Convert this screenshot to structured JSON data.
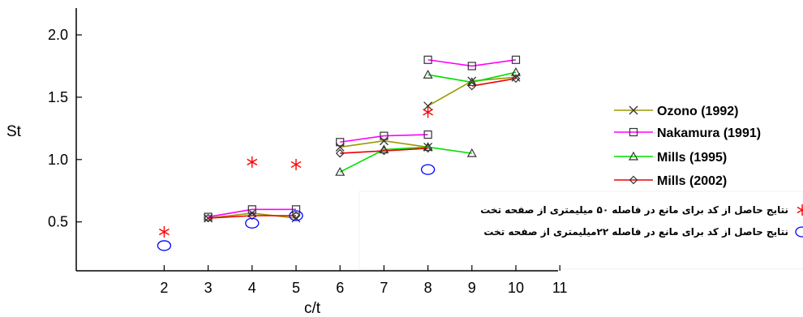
{
  "chart_data": {
    "type": "scatter",
    "xlabel": "c/t",
    "ylabel": "St",
    "xlim": [
      0,
      12
    ],
    "ylim": [
      0.2,
      2.2
    ],
    "x_ticks": [
      2,
      3,
      4,
      5,
      6,
      7,
      8,
      9,
      10,
      11
    ],
    "y_ticks": [
      0.5,
      1.0,
      1.5,
      2.0
    ],
    "x_tick_labels": [
      "2",
      "3",
      "4",
      "5",
      "6",
      "7",
      "8",
      "9",
      "10",
      "11"
    ],
    "y_tick_labels": [
      "0.5",
      "1.0",
      "1.5",
      "2.0"
    ],
    "grid": false,
    "legend_position": "right",
    "series": [
      {
        "name": "Ozono (1992)",
        "color": "#9a9a00",
        "marker": "x",
        "segments": [
          {
            "x": [
              3,
              4,
              5
            ],
            "y": [
              0.53,
              0.57,
              0.53
            ]
          },
          {
            "x": [
              6,
              7,
              8
            ],
            "y": [
              1.1,
              1.15,
              1.1
            ]
          },
          {
            "x": [
              8,
              9,
              10
            ],
            "y": [
              1.43,
              1.63,
              1.66
            ]
          }
        ]
      },
      {
        "name": "Nakamura (1991)",
        "color": "#ff00ff",
        "marker": "square",
        "segments": [
          {
            "x": [
              3,
              4,
              5
            ],
            "y": [
              0.54,
              0.6,
              0.6
            ]
          },
          {
            "x": [
              6,
              7,
              8
            ],
            "y": [
              1.14,
              1.19,
              1.2
            ]
          },
          {
            "x": [
              8,
              9,
              10
            ],
            "y": [
              1.8,
              1.75,
              1.8
            ]
          }
        ]
      },
      {
        "name": "Mills (1995)",
        "color": "#00dd00",
        "marker": "triangle",
        "segments": [
          {
            "x": [
              6,
              7,
              8,
              9
            ],
            "y": [
              0.9,
              1.08,
              1.1,
              1.05
            ]
          },
          {
            "x": [
              8,
              9,
              10
            ],
            "y": [
              1.68,
              1.62,
              1.7
            ]
          }
        ]
      },
      {
        "name": "Mills (2002)",
        "color": "#ee0000",
        "marker": "diamond",
        "segments": [
          {
            "x": [
              3,
              4,
              5
            ],
            "y": [
              0.53,
              0.55,
              0.55
            ]
          },
          {
            "x": [
              6,
              7,
              8
            ],
            "y": [
              1.05,
              1.07,
              1.09
            ]
          },
          {
            "x": [
              9,
              10
            ],
            "y": [
              1.59,
              1.65
            ]
          }
        ]
      },
      {
        "name": "نتایج حاصل از کد برای مانع در فاصله ۵۰ میلیمتری از صفحه تخت",
        "color": "#ff0000",
        "marker": "asterisk",
        "points": {
          "x": [
            2,
            4,
            5,
            8
          ],
          "y": [
            0.42,
            0.98,
            0.96,
            1.38
          ]
        }
      },
      {
        "name": "نتایج حاصل از کد برای مانع در فاصله ۲۲میلیمتری از صفحه تخت",
        "color": "#0000ff",
        "marker": "circle",
        "points": {
          "x": [
            2,
            4,
            5,
            8
          ],
          "y": [
            0.31,
            0.49,
            0.55,
            0.92
          ]
        }
      }
    ]
  }
}
